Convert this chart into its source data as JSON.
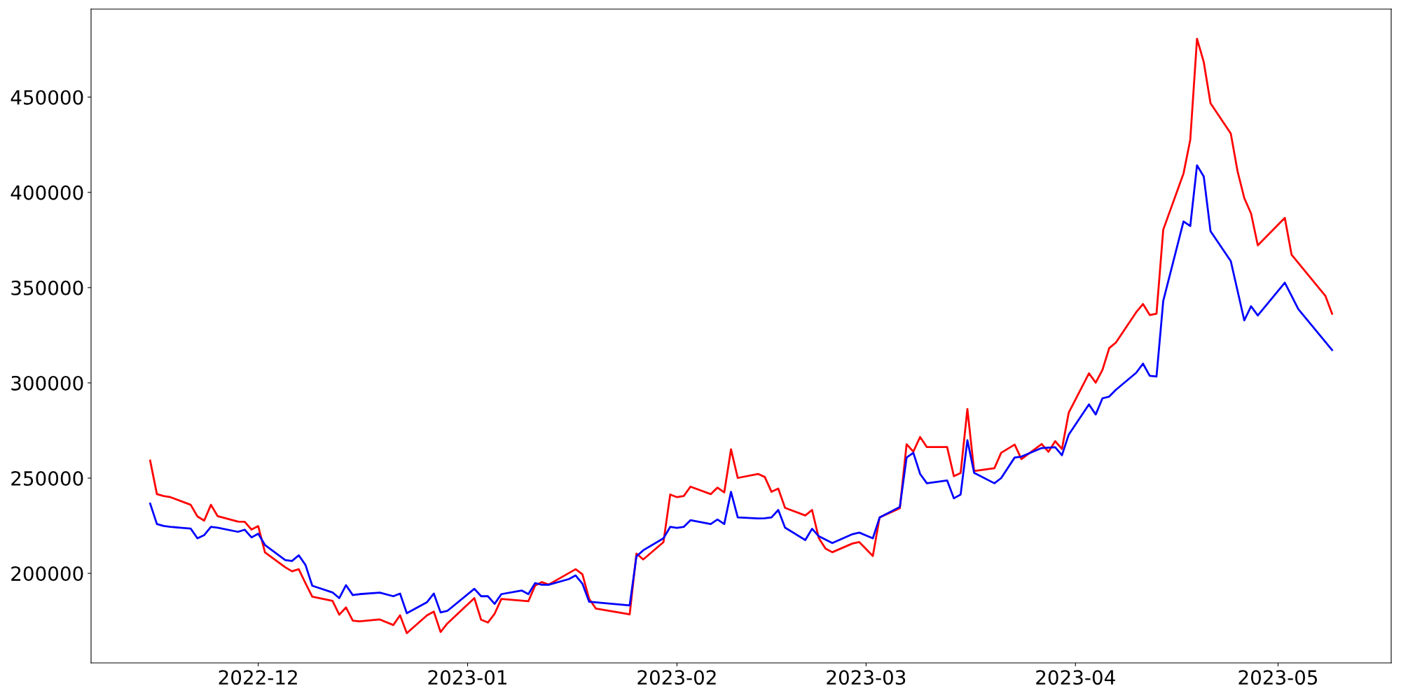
{
  "chart_data": {
    "type": "line",
    "xlim": [
      "2022-11-06T06:00",
      "2023-05-17T18:00"
    ],
    "xticks": [
      "2022-12",
      "2023-01",
      "2023-02",
      "2023-03",
      "2023-04",
      "2023-05"
    ],
    "ylim": [
      153000,
      496200
    ],
    "yticks": [
      200000,
      250000,
      300000,
      350000,
      400000,
      450000
    ],
    "grid": false,
    "marker": "none",
    "line_style": "solid",
    "series": [
      {
        "color": "#ff0000",
        "x": [
          "2022-11-15",
          "2022-11-16",
          "2022-11-17",
          "2022-11-18",
          "2022-11-21",
          "2022-11-22",
          "2022-11-23",
          "2022-11-24",
          "2022-11-25",
          "2022-11-28",
          "2022-11-29",
          "2022-11-30",
          "2022-12-01",
          "2022-12-02",
          "2022-12-05",
          "2022-12-06",
          "2022-12-07",
          "2022-12-08",
          "2022-12-09",
          "2022-12-12",
          "2022-12-13",
          "2022-12-14",
          "2022-12-15",
          "2022-12-16",
          "2022-12-19",
          "2022-12-21",
          "2022-12-22",
          "2022-12-23",
          "2022-12-26",
          "2022-12-27",
          "2022-12-28",
          "2022-12-29",
          "2023-01-02",
          "2023-01-03",
          "2023-01-04",
          "2023-01-05",
          "2023-01-06",
          "2023-01-10",
          "2023-01-11",
          "2023-01-12",
          "2023-01-13",
          "2023-01-17",
          "2023-01-18",
          "2023-01-19",
          "2023-01-20",
          "2023-01-25",
          "2023-01-26",
          "2023-01-27",
          "2023-01-30",
          "2023-01-31",
          "2023-02-01",
          "2023-02-02",
          "2023-02-03",
          "2023-02-06",
          "2023-02-07",
          "2023-02-08",
          "2023-02-09",
          "2023-02-10",
          "2023-02-13",
          "2023-02-14",
          "2023-02-15",
          "2023-02-16",
          "2023-02-17",
          "2023-02-20",
          "2023-02-21",
          "2023-02-22",
          "2023-02-23",
          "2023-02-24",
          "2023-02-27",
          "2023-02-28",
          "2023-03-02",
          "2023-03-03",
          "2023-03-06",
          "2023-03-07",
          "2023-03-08",
          "2023-03-09",
          "2023-03-10",
          "2023-03-13",
          "2023-03-14",
          "2023-03-15",
          "2023-03-16",
          "2023-03-17",
          "2023-03-20",
          "2023-03-21",
          "2023-03-23",
          "2023-03-24",
          "2023-03-27",
          "2023-03-28",
          "2023-03-29",
          "2023-03-30",
          "2023-03-31",
          "2023-04-03",
          "2023-04-04",
          "2023-04-05",
          "2023-04-06",
          "2023-04-07",
          "2023-04-10",
          "2023-04-11",
          "2023-04-12",
          "2023-04-13",
          "2023-04-14",
          "2023-04-17",
          "2023-04-18",
          "2023-04-19",
          "2023-04-20",
          "2023-04-21",
          "2023-04-24",
          "2023-04-25",
          "2023-04-26",
          "2023-04-27",
          "2023-04-28",
          "2023-05-02",
          "2023-05-03",
          "2023-05-08",
          "2023-05-09"
        ],
        "values": [
          259200,
          241600,
          240600,
          240000,
          236000,
          229900,
          227700,
          236000,
          230000,
          227200,
          227100,
          223000,
          224800,
          211000,
          203200,
          201100,
          202200,
          194800,
          187800,
          185600,
          178300,
          182100,
          175200,
          174800,
          175800,
          172900,
          178000,
          168600,
          178000,
          179900,
          169200,
          173700,
          187000,
          175700,
          174200,
          178800,
          186600,
          185400,
          193600,
          195400,
          194100,
          202200,
          199500,
          186600,
          181500,
          178500,
          210400,
          207300,
          216400,
          241400,
          240000,
          240600,
          245500,
          241600,
          245000,
          242500,
          265100,
          250100,
          252200,
          250600,
          242800,
          244500,
          234400,
          230400,
          233300,
          218500,
          213000,
          211100,
          215700,
          216400,
          209100,
          229300,
          234200,
          267800,
          263900,
          271600,
          266300,
          266300,
          251000,
          252700,
          286200,
          253700,
          255200,
          263300,
          267600,
          260000,
          267900,
          263800,
          269400,
          265300,
          284300,
          305000,
          300100,
          306800,
          318200,
          321200,
          337100,
          341400,
          335600,
          336300,
          380400,
          409900,
          427600,
          480600,
          468400,
          446800,
          430900,
          411100,
          397000,
          388900,
          372200,
          386600,
          367300,
          345700,
          336300
        ]
      },
      {
        "color": "#0000ff",
        "x": [
          "2022-11-15",
          "2022-11-16",
          "2022-11-17",
          "2022-11-18",
          "2022-11-21",
          "2022-11-22",
          "2022-11-23",
          "2022-11-24",
          "2022-11-25",
          "2022-11-28",
          "2022-11-29",
          "2022-11-30",
          "2022-12-01",
          "2022-12-02",
          "2022-12-05",
          "2022-12-06",
          "2022-12-07",
          "2022-12-08",
          "2022-12-09",
          "2022-12-12",
          "2022-12-13",
          "2022-12-14",
          "2022-12-15",
          "2022-12-16",
          "2022-12-19",
          "2022-12-21",
          "2022-12-22",
          "2022-12-23",
          "2022-12-26",
          "2022-12-27",
          "2022-12-28",
          "2022-12-29",
          "2023-01-02",
          "2023-01-03",
          "2023-01-04",
          "2023-01-05",
          "2023-01-06",
          "2023-01-09",
          "2023-01-10",
          "2023-01-11",
          "2023-01-12",
          "2023-01-13",
          "2023-01-16",
          "2023-01-17",
          "2023-01-18",
          "2023-01-19",
          "2023-01-25",
          "2023-01-26",
          "2023-01-27",
          "2023-01-30",
          "2023-01-31",
          "2023-02-01",
          "2023-02-02",
          "2023-02-03",
          "2023-02-06",
          "2023-02-07",
          "2023-02-08",
          "2023-02-09",
          "2023-02-10",
          "2023-02-13",
          "2023-02-14",
          "2023-02-15",
          "2023-02-16",
          "2023-02-17",
          "2023-02-20",
          "2023-02-21",
          "2023-02-22",
          "2023-02-24",
          "2023-02-27",
          "2023-02-28",
          "2023-03-02",
          "2023-03-03",
          "2023-03-06",
          "2023-03-07",
          "2023-03-08",
          "2023-03-09",
          "2023-03-10",
          "2023-03-13",
          "2023-03-14",
          "2023-03-15",
          "2023-03-16",
          "2023-03-17",
          "2023-03-20",
          "2023-03-21",
          "2023-03-23",
          "2023-03-24",
          "2023-03-27",
          "2023-03-29",
          "2023-03-30",
          "2023-03-31",
          "2023-04-03",
          "2023-04-04",
          "2023-04-05",
          "2023-04-06",
          "2023-04-07",
          "2023-04-10",
          "2023-04-11",
          "2023-04-12",
          "2023-04-13",
          "2023-04-14",
          "2023-04-17",
          "2023-04-18",
          "2023-04-19",
          "2023-04-20",
          "2023-04-21",
          "2023-04-24",
          "2023-04-26",
          "2023-04-27",
          "2023-04-28",
          "2023-05-02",
          "2023-05-03",
          "2023-05-04",
          "2023-05-09"
        ],
        "values": [
          236600,
          225900,
          224900,
          224400,
          223500,
          218400,
          220100,
          224400,
          224000,
          221800,
          222900,
          218900,
          220800,
          214900,
          207000,
          206500,
          209500,
          204400,
          193500,
          190000,
          187000,
          193800,
          188600,
          189100,
          189900,
          188000,
          189400,
          179100,
          184900,
          189400,
          179500,
          180300,
          191900,
          188000,
          188000,
          184000,
          189100,
          191000,
          189100,
          194900,
          194000,
          194000,
          197000,
          198900,
          194600,
          185100,
          183200,
          208900,
          212100,
          218400,
          224400,
          223900,
          224400,
          227900,
          225900,
          228300,
          225900,
          242800,
          229400,
          228800,
          228900,
          229400,
          233300,
          224000,
          217500,
          223400,
          219500,
          215900,
          220600,
          221400,
          218400,
          229300,
          234900,
          260800,
          263300,
          252200,
          247300,
          248800,
          239400,
          241400,
          269900,
          252800,
          247300,
          250000,
          260800,
          261300,
          265800,
          266200,
          262000,
          272800,
          288700,
          283400,
          291900,
          292800,
          296400,
          305300,
          310100,
          303700,
          303300,
          343000,
          384700,
          382300,
          414200,
          408300,
          379600,
          363900,
          332800,
          340200,
          335400,
          352600,
          345700,
          338700,
          317200
        ]
      }
    ]
  }
}
